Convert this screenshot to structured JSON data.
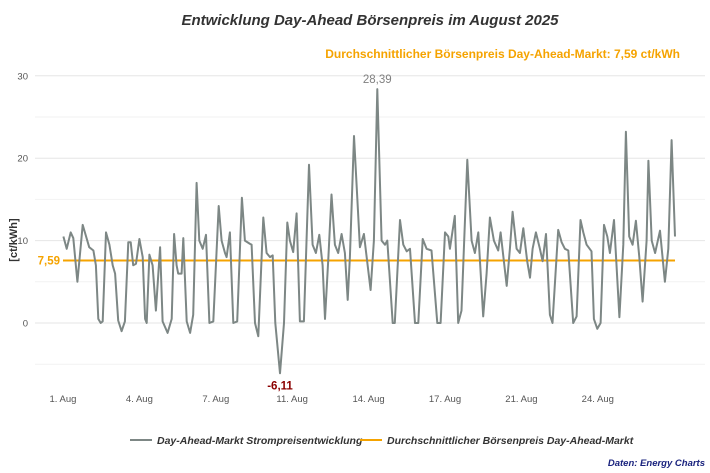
{
  "chart_data": {
    "type": "line",
    "title": "Entwicklung Day-Ahead Börsenpreis im August 2025",
    "subtitle": "Durchschnittlicher Börsenpreis Day-Ahead-Markt: 7,59 ct/kWh",
    "ylabel": "[ct/kWh]",
    "xlabel": "",
    "ylim": [
      -7,
      31
    ],
    "y_ticks": [
      "0",
      "10",
      "20",
      "30"
    ],
    "y_tick_values": [
      0,
      10,
      20,
      30
    ],
    "x_tick_labels": [
      "1. Aug",
      "4. Aug",
      "7. Aug",
      "11. Aug",
      "14. Aug",
      "17. Aug",
      "21. Aug",
      "24. Aug"
    ],
    "grid": true,
    "legend_position": "bottom",
    "colors": {
      "series": "#7d8785",
      "average": "#f5a300",
      "min_label": "#8b0000",
      "max_label": "#808080",
      "source": "#1a237e"
    },
    "series": [
      {
        "name": "Day-Ahead-Markt Strompreisentwicklung",
        "points": [
          [
            1.02,
            10.5
          ],
          [
            1.19,
            9
          ],
          [
            1.39,
            11
          ],
          [
            1.52,
            10.3
          ],
          [
            1.73,
            5
          ],
          [
            2.0,
            11.9
          ],
          [
            2.17,
            10.5
          ],
          [
            2.33,
            9.2
          ],
          [
            2.54,
            8.8
          ],
          [
            2.67,
            7
          ],
          [
            2.79,
            0.5
          ],
          [
            2.91,
            0
          ],
          [
            3.01,
            0.2
          ],
          [
            3.18,
            11
          ],
          [
            3.35,
            9.5
          ],
          [
            3.52,
            7
          ],
          [
            3.64,
            6
          ],
          [
            3.8,
            0.3
          ],
          [
            3.97,
            -1
          ],
          [
            4.14,
            0.2
          ],
          [
            4.31,
            9.8
          ],
          [
            4.43,
            9.8
          ],
          [
            4.56,
            7
          ],
          [
            4.7,
            7.2
          ],
          [
            4.87,
            10.2
          ],
          [
            5.04,
            8
          ],
          [
            5.16,
            0.5
          ],
          [
            5.24,
            0
          ],
          [
            5.38,
            8.3
          ],
          [
            5.54,
            7
          ],
          [
            5.71,
            1.5
          ],
          [
            5.92,
            9.2
          ],
          [
            6.05,
            0.2
          ],
          [
            6.3,
            -1.2
          ],
          [
            6.51,
            0.5
          ],
          [
            6.63,
            10.8
          ],
          [
            6.76,
            7
          ],
          [
            6.84,
            6
          ],
          [
            7.01,
            6
          ],
          [
            7.1,
            10.3
          ],
          [
            7.27,
            0.2
          ],
          [
            7.44,
            -1.2
          ],
          [
            7.6,
            1
          ],
          [
            7.77,
            17
          ],
          [
            7.91,
            10
          ],
          [
            8.08,
            9
          ],
          [
            8.25,
            10.7
          ],
          [
            8.42,
            0
          ],
          [
            8.62,
            0.2
          ],
          [
            8.89,
            14.2
          ],
          [
            9.04,
            10
          ],
          [
            9.21,
            8.5
          ],
          [
            9.29,
            8
          ],
          [
            9.46,
            11
          ],
          [
            9.63,
            0
          ],
          [
            9.83,
            0.2
          ],
          [
            10.07,
            15.2
          ],
          [
            10.22,
            10
          ],
          [
            10.48,
            9.6
          ],
          [
            10.56,
            9.5
          ],
          [
            10.73,
            0
          ],
          [
            10.9,
            -1.6
          ],
          [
            11.15,
            12.8
          ],
          [
            11.32,
            8.5
          ],
          [
            11.49,
            8
          ],
          [
            11.63,
            8.2
          ],
          [
            11.76,
            0
          ],
          [
            12.0,
            -6.11
          ],
          [
            12.2,
            0
          ],
          [
            12.37,
            12.2
          ],
          [
            12.5,
            10
          ],
          [
            12.67,
            8.6
          ],
          [
            12.84,
            13.3
          ],
          [
            13.01,
            0.2
          ],
          [
            13.21,
            0.2
          ],
          [
            13.47,
            19.2
          ],
          [
            13.65,
            9.5
          ],
          [
            13.82,
            8.5
          ],
          [
            13.99,
            10.7
          ],
          [
            14.16,
            7
          ],
          [
            14.28,
            0.5
          ],
          [
            14.45,
            8
          ],
          [
            14.61,
            15.6
          ],
          [
            14.78,
            9.5
          ],
          [
            14.95,
            8.5
          ],
          [
            15.12,
            10.8
          ],
          [
            15.29,
            8.5
          ],
          [
            15.43,
            2.8
          ],
          [
            15.54,
            8
          ],
          [
            15.75,
            22.7
          ],
          [
            16.05,
            9.2
          ],
          [
            16.25,
            10.8
          ],
          [
            16.59,
            4
          ],
          [
            16.76,
            10
          ],
          [
            16.93,
            28.39
          ],
          [
            17.15,
            10
          ],
          [
            17.32,
            9.5
          ],
          [
            17.44,
            10
          ],
          [
            17.71,
            0
          ],
          [
            17.82,
            0
          ],
          [
            18.08,
            12.5
          ],
          [
            18.25,
            9.5
          ],
          [
            18.42,
            8.7
          ],
          [
            18.59,
            9
          ],
          [
            18.84,
            0
          ],
          [
            19.01,
            0
          ],
          [
            19.23,
            10.2
          ],
          [
            19.43,
            9
          ],
          [
            19.68,
            8.8
          ],
          [
            19.97,
            0
          ],
          [
            20.14,
            0
          ],
          [
            20.36,
            11
          ],
          [
            20.53,
            10.5
          ],
          [
            20.61,
            9
          ],
          [
            20.86,
            13
          ],
          [
            21.03,
            0
          ],
          [
            21.2,
            1.5
          ],
          [
            21.49,
            19.8
          ],
          [
            21.71,
            10
          ],
          [
            21.88,
            8.5
          ],
          [
            22.05,
            11
          ],
          [
            22.3,
            0.8
          ],
          [
            22.47,
            6
          ],
          [
            22.64,
            12.8
          ],
          [
            22.84,
            10
          ],
          [
            23.06,
            8.8
          ],
          [
            23.18,
            11
          ],
          [
            23.49,
            4.5
          ],
          [
            23.65,
            9
          ],
          [
            23.79,
            13.5
          ],
          [
            23.99,
            9
          ],
          [
            24.16,
            8.5
          ],
          [
            24.33,
            11.5
          ],
          [
            24.53,
            7.5
          ],
          [
            24.67,
            5.5
          ],
          [
            24.8,
            9
          ],
          [
            24.97,
            11
          ],
          [
            25.17,
            9
          ],
          [
            25.31,
            7.5
          ],
          [
            25.48,
            10.8
          ],
          [
            25.68,
            1
          ],
          [
            25.81,
            0
          ],
          [
            26.1,
            11.3
          ],
          [
            26.27,
            9.8
          ],
          [
            26.44,
            9
          ],
          [
            26.61,
            8.8
          ],
          [
            26.86,
            0
          ],
          [
            27.03,
            0.8
          ],
          [
            27.23,
            12.5
          ],
          [
            27.37,
            11
          ],
          [
            27.54,
            9.5
          ],
          [
            27.79,
            8.7
          ],
          [
            27.91,
            0.5
          ],
          [
            28.08,
            -0.7
          ],
          [
            28.25,
            0
          ],
          [
            28.42,
            11.9
          ],
          [
            28.59,
            10.5
          ],
          [
            28.72,
            8.5
          ],
          [
            28.93,
            12.5
          ],
          [
            29.2,
            0.7
          ],
          [
            29.4,
            9.5
          ],
          [
            29.53,
            23.2
          ],
          [
            29.7,
            10.5
          ],
          [
            29.87,
            9.5
          ],
          [
            30.04,
            12.4
          ],
          [
            30.21,
            8
          ],
          [
            30.38,
            2.6
          ],
          [
            30.58,
            10
          ],
          [
            30.67,
            19.7
          ],
          [
            30.84,
            10
          ],
          [
            31.01,
            8.5
          ],
          [
            31.26,
            11.2
          ],
          [
            31.51,
            5
          ],
          [
            31.68,
            9
          ],
          [
            31.85,
            22.2
          ],
          [
            32.02,
            10.5
          ]
        ]
      },
      {
        "name": "Durchschnittlicher Börsenpreis Day-Ahead-Markt",
        "value": 7.59
      }
    ],
    "annotations": {
      "average_label": "7,59",
      "min_label": "-6,11",
      "min_value": -6.11,
      "max_label": "28,39",
      "max_value": 28.39
    },
    "source": "Daten: Energy Charts"
  }
}
